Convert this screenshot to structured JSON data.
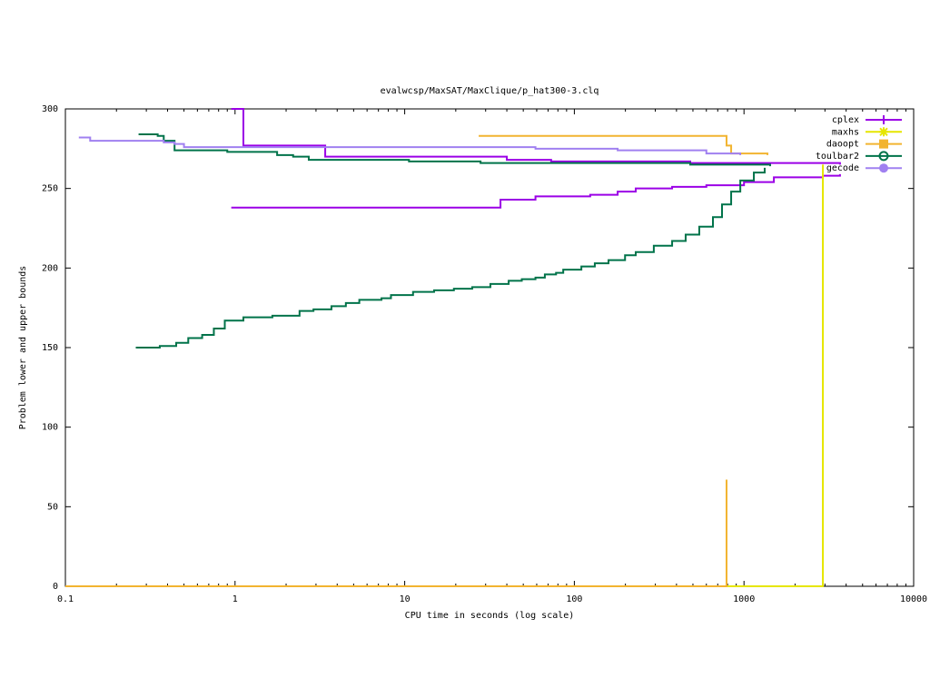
{
  "chart_data": {
    "type": "step-line",
    "title": "evalwcsp/MaxSAT/MaxClique/p_hat300-3.clq",
    "x_label": "CPU time in seconds (log scale)",
    "y_label": "Problem lower and upper bounds",
    "xlim": [
      0.1,
      10000
    ],
    "xticks": [
      0.1,
      1,
      10,
      100,
      1000,
      10000
    ],
    "xscale": "log",
    "xminor": true,
    "ylim": [
      0,
      300
    ],
    "yticks": [
      0,
      50,
      100,
      150,
      200,
      250,
      300
    ],
    "grid": false,
    "legend": "top-right",
    "series": [
      {
        "name": "cplex",
        "color": "#9b00e6",
        "marker": "plus",
        "upper": {
          "x": [
            0.95,
            1.12,
            3.4,
            40,
            73,
            482,
            3680
          ],
          "values": [
            300,
            277,
            270,
            268,
            267,
            266,
            265
          ]
        },
        "lower": {
          "x": [
            0.95,
            36.7,
            59,
            124,
            180,
            230,
            377,
            600,
            1000,
            1500,
            2917,
            3680
          ],
          "values": [
            238,
            243,
            245,
            246,
            248,
            250,
            251,
            252,
            254,
            257,
            258,
            259
          ]
        }
      },
      {
        "name": "maxhs",
        "color": "#e6e600",
        "marker": "star",
        "upper": {
          "x": [
            2917
          ],
          "values": [
            265
          ]
        },
        "lower": {
          "x": [
            0.1,
            2917
          ],
          "values": [
            0,
            265
          ]
        }
      },
      {
        "name": "daoopt",
        "color": "#f2b430",
        "marker": "square",
        "upper": {
          "x": [
            27.3,
            789,
            840,
            1375
          ],
          "values": [
            283,
            277,
            272,
            271
          ]
        },
        "lower": {
          "x": [
            0.1,
            789
          ],
          "values": [
            0,
            67
          ]
        }
      },
      {
        "name": "toulbar2",
        "color": "#00734a",
        "marker": "circle",
        "upper": {
          "x": [
            0.27,
            0.35,
            0.38,
            0.44,
            0.9,
            1.77,
            2.2,
            2.72,
            10.6,
            28,
            482,
            1426
          ],
          "values": [
            284,
            283,
            280,
            274,
            273,
            271,
            270,
            268,
            267,
            266,
            265,
            264
          ]
        },
        "lower": {
          "x": [
            0.26,
            0.36,
            0.45,
            0.53,
            0.64,
            0.75,
            0.87,
            1.12,
            1.66,
            2.4,
            2.9,
            3.7,
            4.5,
            5.4,
            7.3,
            8.3,
            11.2,
            14.9,
            19.5,
            25,
            32,
            41,
            49,
            59,
            67,
            78,
            86,
            110,
            132,
            159,
            199,
            230,
            294,
            377,
            453,
            545,
            656,
            742,
            840,
            951,
            1143,
            1324
          ],
          "values": [
            150,
            151,
            153,
            156,
            158,
            162,
            167,
            169,
            170,
            173,
            174,
            176,
            178,
            180,
            181,
            183,
            185,
            186,
            187,
            188,
            190,
            192,
            193,
            194,
            196,
            197,
            199,
            201,
            203,
            205,
            208,
            210,
            214,
            217,
            221,
            226,
            232,
            240,
            248,
            255,
            260,
            263
          ]
        }
      },
      {
        "name": "gecode",
        "color": "#a080f0",
        "marker": "filled-circle",
        "upper": {
          "x": [
            0.12,
            0.14,
            0.38,
            0.44,
            0.5,
            12,
            59,
            180,
            600,
            950
          ],
          "values": [
            282,
            280,
            279,
            278,
            276,
            276,
            275,
            274,
            272,
            271
          ]
        }
      }
    ]
  }
}
